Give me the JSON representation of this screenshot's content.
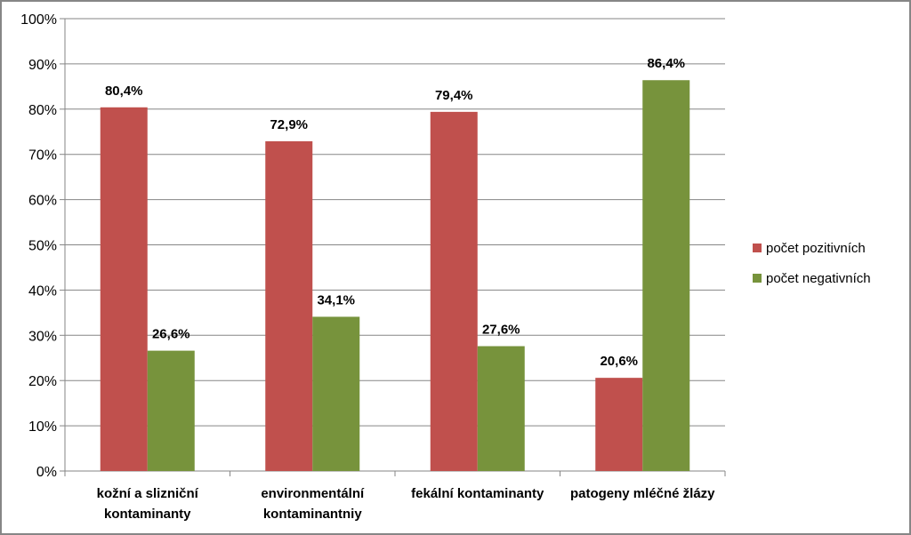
{
  "chart_data": {
    "type": "bar",
    "categories": [
      [
        "kožní a slizniční",
        "kontaminanty"
      ],
      [
        "environmentální",
        "kontaminantniy"
      ],
      [
        "fekální kontaminanty"
      ],
      [
        "patogeny mléčné žlázy"
      ]
    ],
    "series": [
      {
        "name": "počet pozitivních",
        "values": [
          80.4,
          72.9,
          79.4,
          20.6
        ],
        "labels": [
          "80,4%",
          "72,9%",
          "79,4%",
          "20,6%"
        ],
        "color": "#C0504D"
      },
      {
        "name": "počet negativních",
        "values": [
          26.6,
          34.1,
          27.6,
          86.4
        ],
        "labels": [
          "26,6%",
          "34,1%",
          "27,6%",
          "86,4%"
        ],
        "color": "#77933C"
      }
    ],
    "yticks": [
      "0%",
      "10%",
      "20%",
      "30%",
      "40%",
      "50%",
      "60%",
      "70%",
      "80%",
      "90%",
      "100%"
    ],
    "ylim": [
      0,
      100
    ],
    "grid": true,
    "legend_position": "right"
  }
}
